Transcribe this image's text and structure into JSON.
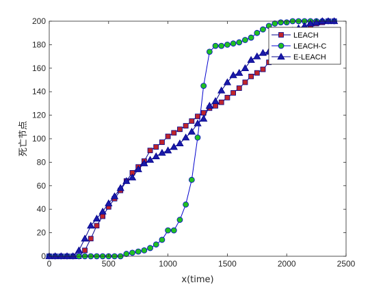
{
  "chart_data": {
    "type": "line",
    "title": "",
    "xlabel": "x(time)",
    "ylabel": "死亡节点",
    "xlim": [
      0,
      2500
    ],
    "ylim": [
      0,
      200
    ],
    "xticks": [
      "0",
      "500",
      "1000",
      "1500",
      "2000",
      "2500"
    ],
    "yticks": [
      "0",
      "20",
      "40",
      "60",
      "80",
      "100",
      "120",
      "140",
      "160",
      "180",
      "200"
    ],
    "grid": false,
    "legend_position": "top-right",
    "series": [
      {
        "name": "LEACH",
        "color": "#00008b",
        "marker": "square",
        "marker_fill": "#c0262b",
        "x": [
          0,
          50,
          100,
          150,
          200,
          250,
          300,
          350,
          400,
          450,
          500,
          550,
          600,
          650,
          700,
          750,
          800,
          850,
          900,
          950,
          1000,
          1050,
          1100,
          1150,
          1200,
          1250,
          1300,
          1350,
          1400,
          1450,
          1500,
          1550,
          1600,
          1650,
          1700,
          1750,
          1800,
          1850,
          1900,
          1950,
          2000,
          2050,
          2100,
          2150,
          2200,
          2250,
          2300,
          2350,
          2400
        ],
        "y": [
          0,
          0,
          0,
          0,
          0,
          0,
          5,
          15,
          26,
          34,
          42,
          49,
          56,
          64,
          71,
          76,
          81,
          90,
          93,
          97,
          102,
          105,
          108,
          111,
          115,
          119,
          122,
          126,
          128,
          131,
          135,
          139,
          143,
          148,
          153,
          156,
          159,
          165,
          168,
          173,
          178,
          184,
          188,
          191,
          196,
          198,
          199,
          200,
          200
        ]
      },
      {
        "name": "LEACH-C",
        "color": "#0000cd",
        "marker": "circle",
        "marker_fill": "#22c022",
        "x": [
          0,
          50,
          100,
          150,
          200,
          250,
          300,
          350,
          400,
          450,
          500,
          550,
          600,
          650,
          700,
          750,
          800,
          850,
          900,
          950,
          1000,
          1050,
          1100,
          1150,
          1200,
          1250,
          1300,
          1350,
          1400,
          1450,
          1500,
          1550,
          1600,
          1650,
          1700,
          1750,
          1800,
          1850,
          1900,
          1950,
          2000,
          2050,
          2100,
          2150,
          2200,
          2250,
          2300,
          2350,
          2400
        ],
        "y": [
          0,
          0,
          0,
          0,
          0,
          0,
          0,
          0,
          0,
          0,
          0,
          0,
          0,
          2,
          3,
          4,
          5,
          7,
          10,
          14,
          22,
          22,
          31,
          44,
          65,
          101,
          145,
          174,
          179,
          179,
          180,
          181,
          182,
          184,
          186,
          190,
          193,
          196,
          198,
          199,
          199,
          200,
          200,
          200,
          200,
          200,
          200,
          200,
          200
        ]
      },
      {
        "name": "E-LEACH",
        "color": "#00008b",
        "marker": "triangle",
        "marker_fill": "#1a1aa8",
        "x": [
          0,
          50,
          100,
          150,
          200,
          250,
          300,
          350,
          400,
          450,
          500,
          550,
          600,
          650,
          700,
          750,
          800,
          850,
          900,
          950,
          1000,
          1050,
          1100,
          1150,
          1200,
          1250,
          1300,
          1350,
          1400,
          1450,
          1500,
          1550,
          1600,
          1650,
          1700,
          1750,
          1800,
          1850,
          1900,
          1950,
          2000,
          2050,
          2100,
          2150,
          2200,
          2250,
          2300,
          2350,
          2400
        ],
        "y": [
          0,
          0,
          0,
          0,
          0,
          5,
          15,
          26,
          32,
          38,
          45,
          51,
          58,
          64,
          67,
          74,
          79,
          82,
          85,
          88,
          90,
          93,
          96,
          101,
          106,
          113,
          117,
          128,
          132,
          141,
          148,
          154,
          156,
          160,
          167,
          170,
          173,
          174,
          177,
          182,
          187,
          192,
          194,
          196,
          198,
          199,
          200,
          200,
          200
        ]
      }
    ]
  }
}
